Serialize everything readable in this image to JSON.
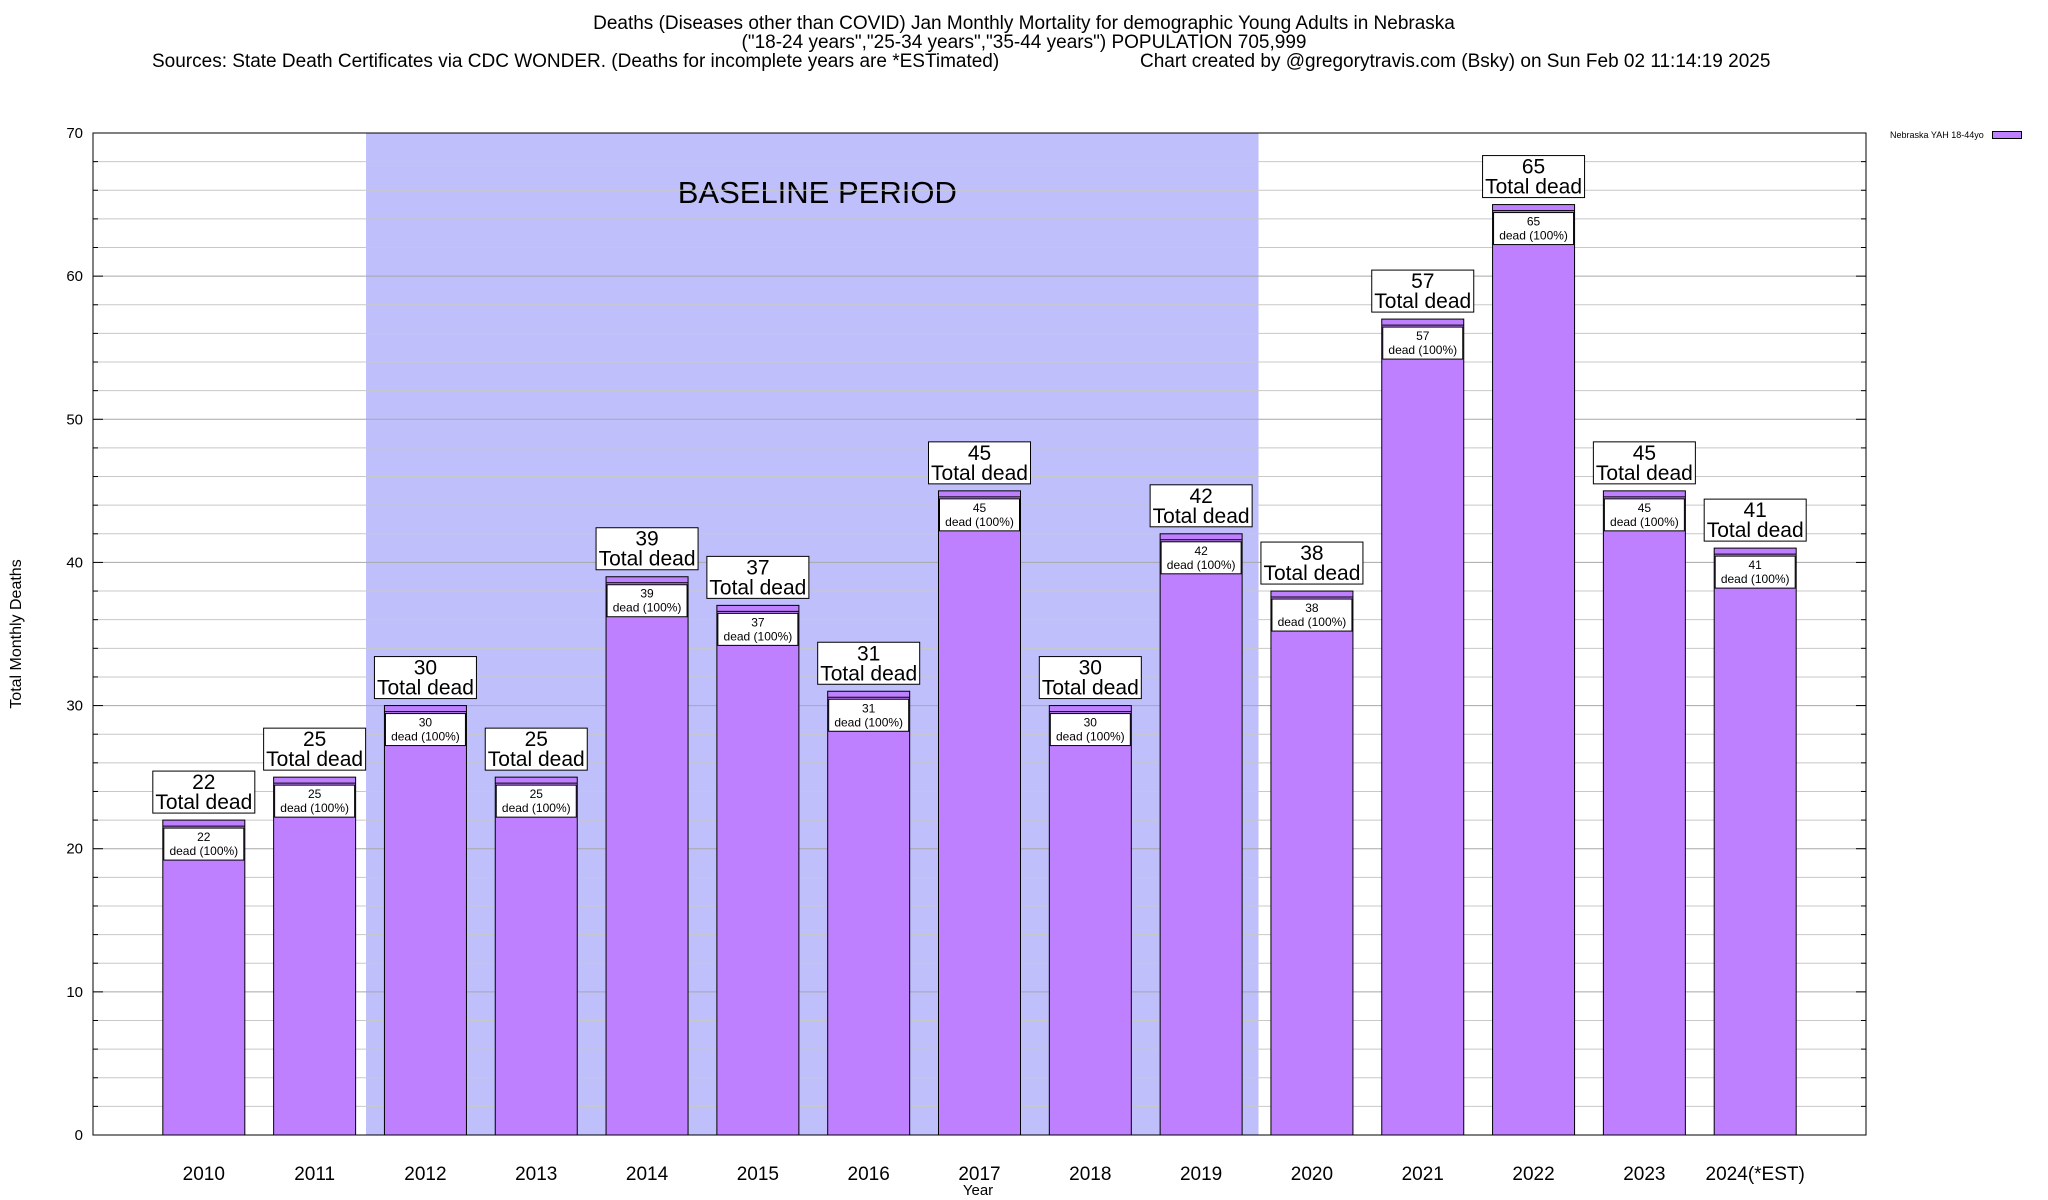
{
  "chart_data": {
    "type": "bar",
    "title": "Deaths (Diseases other than COVID) Jan Monthly Mortality for demographic Young Adults in Nebraska",
    "subtitle": "(\"18-24 years\",\"25-34 years\",\"35-44 years\") POPULATION 705,999",
    "source_text": "Sources: State Death Certificates via CDC WONDER. (Deaths for incomplete years are *ESTimated)",
    "credit_text": "Chart created by @gregorytravis.com (Bsky) on Sun Feb 02 11:14:19 2025",
    "xlabel": "Year",
    "ylabel": "Total Monthly Deaths",
    "ylim": [
      0,
      70
    ],
    "yticks": [
      0,
      10,
      20,
      30,
      40,
      50,
      60,
      70
    ],
    "grid": true,
    "legend_position": "top-right",
    "series": [
      {
        "name": "Nebraska YAH 18-44yo",
        "color": "#bf80ff",
        "values": [
          22,
          25,
          30,
          25,
          39,
          37,
          31,
          45,
          30,
          42,
          38,
          57,
          65,
          45,
          41
        ]
      }
    ],
    "categories": [
      "2010",
      "2011",
      "2012",
      "2013",
      "2014",
      "2015",
      "2016",
      "2017",
      "2018",
      "2019",
      "2020",
      "2021",
      "2022",
      "2023",
      "2024(*EST)"
    ],
    "baseline_band": {
      "label": "BASELINE PERIOD",
      "from": "2012",
      "to": "2019",
      "color": "#bfbffc"
    },
    "total_label_suffix": "Total dead",
    "inner_label_suffix": "dead (100%)"
  }
}
